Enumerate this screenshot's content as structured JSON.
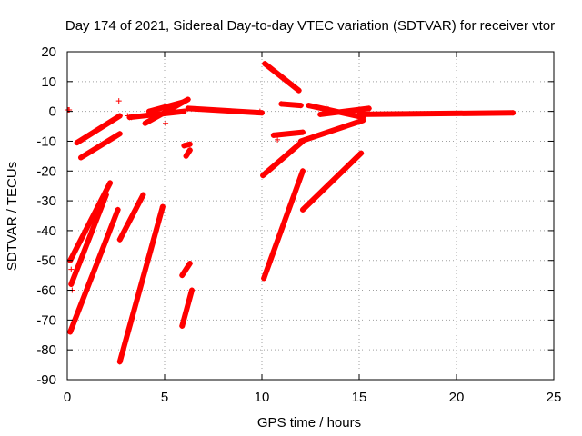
{
  "chart_data": {
    "type": "scatter",
    "title": "Day 174 of 2021, Sidereal Day-to-day VTEC variation (SDTVAR) for receiver vtor",
    "xlabel": "GPS time / hours",
    "ylabel": "SDTVAR / TECUs",
    "xlim": [
      0,
      25
    ],
    "ylim": [
      -90,
      20
    ],
    "xticks": [
      0,
      5,
      10,
      15,
      20,
      25
    ],
    "yticks": [
      -90,
      -80,
      -70,
      -60,
      -50,
      -40,
      -30,
      -20,
      -10,
      0,
      10,
      20
    ],
    "grid": true,
    "grid_style": "dotted",
    "legend": "none",
    "marker": "+",
    "color": "#ff0000",
    "series": [
      {
        "segments": [
          {
            "x0": 0.5,
            "y0": -10.5,
            "x1": 2.7,
            "y1": -1.5
          },
          {
            "x0": 0.7,
            "y0": -15.5,
            "x1": 2.7,
            "y1": -7.5
          },
          {
            "x0": 0.15,
            "y0": -50,
            "x1": 2.2,
            "y1": -24
          },
          {
            "x0": 0.2,
            "y0": -58,
            "x1": 2.0,
            "y1": -28
          },
          {
            "x0": 0.15,
            "y0": -74,
            "x1": 2.6,
            "y1": -33
          },
          {
            "x0": 2.7,
            "y0": -84,
            "x1": 4.9,
            "y1": -32
          },
          {
            "x0": 2.7,
            "y0": -43,
            "x1": 3.9,
            "y1": -28
          },
          {
            "x0": 5.9,
            "y0": -72,
            "x1": 6.4,
            "y1": -60
          },
          {
            "x0": 5.9,
            "y0": -55,
            "x1": 6.3,
            "y1": -51
          },
          {
            "x0": 6.0,
            "y0": -11.5,
            "x1": 6.3,
            "y1": -11
          },
          {
            "x0": 6.1,
            "y0": -15,
            "x1": 6.3,
            "y1": -13
          },
          {
            "x0": 3.2,
            "y0": -2,
            "x1": 6.0,
            "y1": 0
          },
          {
            "x0": 4.0,
            "y0": -4,
            "x1": 6.2,
            "y1": 4
          },
          {
            "x0": 4.2,
            "y0": 0,
            "x1": 5.9,
            "y1": 3
          },
          {
            "x0": 6.2,
            "y0": 1,
            "x1": 10.0,
            "y1": -0.5
          },
          {
            "x0": 10.05,
            "y0": -21.5,
            "x1": 12.1,
            "y1": -10
          },
          {
            "x0": 10.1,
            "y0": -56,
            "x1": 12.1,
            "y1": -20
          },
          {
            "x0": 10.15,
            "y0": 16,
            "x1": 11.9,
            "y1": 7
          },
          {
            "x0": 10.6,
            "y0": -8,
            "x1": 12.1,
            "y1": -7
          },
          {
            "x0": 11.0,
            "y0": 2.5,
            "x1": 12.0,
            "y1": 2
          },
          {
            "x0": 12.0,
            "y0": -10,
            "x1": 15.2,
            "y1": -3
          },
          {
            "x0": 12.1,
            "y0": -33,
            "x1": 15.1,
            "y1": -14
          },
          {
            "x0": 12.4,
            "y0": 2,
            "x1": 15.2,
            "y1": -2
          },
          {
            "x0": 13.0,
            "y0": -1,
            "x1": 15.5,
            "y1": 1
          },
          {
            "x0": 15.0,
            "y0": -1,
            "x1": 22.9,
            "y1": -0.5
          }
        ]
      },
      {
        "points": [
          [
            0.05,
            0.5
          ],
          [
            0.1,
            0.5
          ],
          [
            0.2,
            -53
          ],
          [
            0.25,
            -60
          ],
          [
            2.65,
            3.5
          ],
          [
            3.1,
            -1.5
          ],
          [
            3.3,
            -2
          ],
          [
            9.9,
            0
          ],
          [
            10.8,
            -9.5
          ],
          [
            5.05,
            -4
          ],
          [
            13.3,
            1.5
          ]
        ]
      }
    ]
  }
}
